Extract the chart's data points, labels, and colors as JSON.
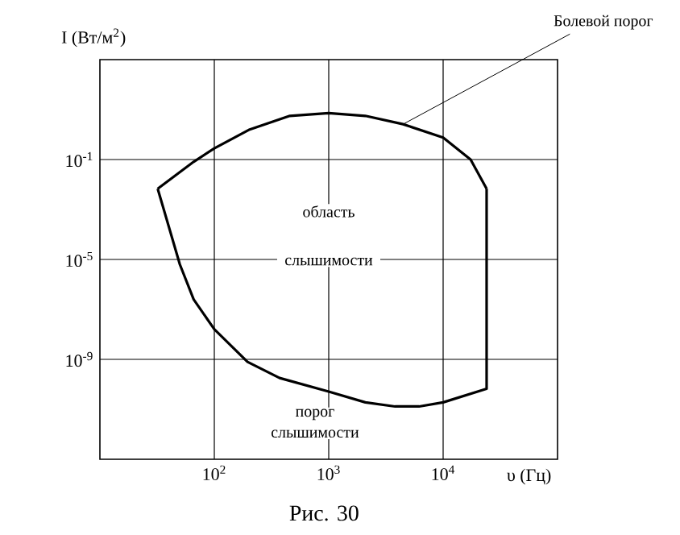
{
  "chart_data": {
    "type": "line",
    "xlabel": "υ (Гц)",
    "ylabel": "I (Вт/м$^{2}$)",
    "log": "xy",
    "grid": true,
    "marker": "none",
    "line_style": "solid",
    "xlim": [
      10,
      100000
    ],
    "ylim": [
      1e-13,
      1000
    ],
    "xticks": [
      {
        "value": 100,
        "label": "10$^{2}$"
      },
      {
        "value": 1000,
        "label": "10$^{3}$"
      },
      {
        "value": 10000,
        "label": "10$^{4}$"
      }
    ],
    "yticks": [
      {
        "value": 1e-09,
        "label": "10$^{-9}$"
      },
      {
        "value": 1e-05,
        "label": "10$^{-5}$"
      },
      {
        "value": 0.1,
        "label": "10$^{-1}$"
      }
    ],
    "series": [
      {
        "color": "#000000",
        "x": [
          32,
          66,
          100,
          204,
          457,
          1000,
          2089,
          4467,
          10000,
          17378,
          23988
        ],
        "values": [
          0.0068,
          0.081,
          0.28,
          1.6,
          5.6,
          7.2,
          5.6,
          2.6,
          0.76,
          0.1,
          0.0068
        ]
      },
      {
        "color": "#000000",
        "x": [
          32,
          50,
          66,
          100,
          195,
          372,
          1000,
          2089,
          3802,
          6166,
          10000,
          23988,
          23988
        ],
        "values": [
          0.0068,
          6.3e-06,
          2.5e-07,
          1.6e-08,
          7.9e-10,
          1.8e-10,
          5.1e-11,
          1.9e-11,
          1.3e-11,
          1.3e-11,
          1.9e-11,
          6.6e-11,
          0.0068
        ]
      }
    ],
    "annotations": [
      {
        "text": "Болевой порог",
        "x": 4467,
        "y": 2.6
      },
      "область слышимости",
      "порог слышимости",
      "Рис. 30"
    ]
  }
}
